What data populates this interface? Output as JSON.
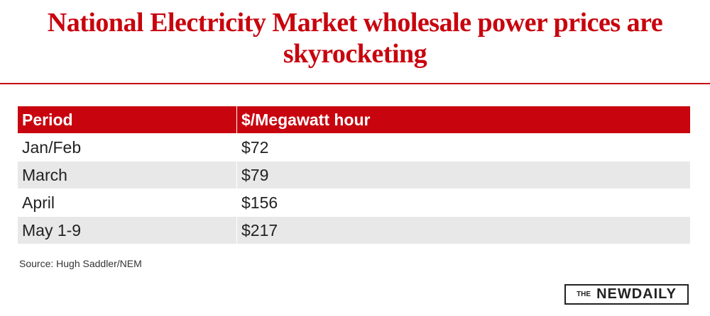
{
  "header": {
    "title": "National Electricity Market wholesale power prices are skyrocketing"
  },
  "table": {
    "columns": [
      "Period",
      "$/Megawatt hour"
    ],
    "rows": [
      [
        "Jan/Feb",
        "$72"
      ],
      [
        "March",
        "$79"
      ],
      [
        "April",
        "$156"
      ],
      [
        "May 1-9",
        "$217"
      ]
    ]
  },
  "footer": {
    "source": "Source: Hugh Saddler/NEM",
    "logo_prefix": "THE",
    "logo_name": "NEWDAILY"
  }
}
